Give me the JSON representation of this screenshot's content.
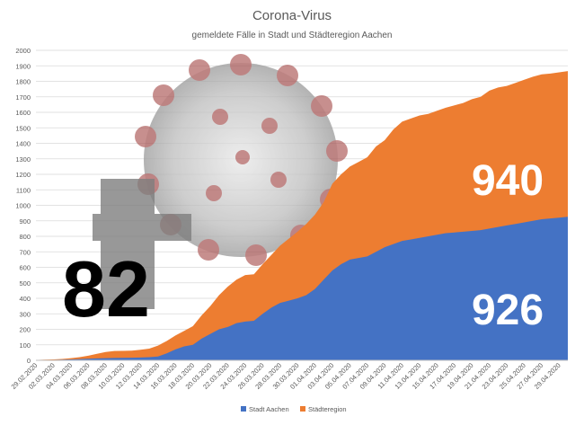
{
  "chart_data": {
    "type": "area",
    "title": "Corona-Virus",
    "subtitle": "gemeldete Fälle in Stadt und Städteregion Aachen",
    "ylim": [
      0,
      2000
    ],
    "yticks": [
      0,
      100,
      200,
      300,
      400,
      500,
      600,
      700,
      800,
      900,
      1000,
      1100,
      1200,
      1300,
      1400,
      1500,
      1600,
      1700,
      1800,
      1900,
      2000
    ],
    "stacked": true,
    "x": [
      "29.02.2020",
      "01.03.2020",
      "02.03.2020",
      "03.03.2020",
      "04.03.2020",
      "05.03.2020",
      "06.03.2020",
      "07.03.2020",
      "08.03.2020",
      "09.03.2020",
      "10.03.2020",
      "11.03.2020",
      "12.03.2020",
      "13.03.2020",
      "14.03.2020",
      "15.03.2020",
      "16.03.2020",
      "17.03.2020",
      "18.03.2020",
      "19.03.2020",
      "20.03.2020",
      "21.03.2020",
      "22.03.2020",
      "23.03.2020",
      "24.03.2020",
      "25.03.2020",
      "26.03.2020",
      "27.03.2020",
      "28.03.2020",
      "29.03.2020",
      "30.03.2020",
      "31.03.2020",
      "01.04.2020",
      "02.04.2020",
      "03.04.2020",
      "04.04.2020",
      "05.04.2020",
      "06.04.2020",
      "07.04.2020",
      "08.04.2020",
      "09.04.2020",
      "10.04.2020",
      "11.04.2020",
      "12.04.2020",
      "13.04.2020",
      "14.04.2020",
      "15.04.2020",
      "16.04.2020",
      "17.04.2020",
      "18.04.2020",
      "19.04.2020",
      "20.04.2020",
      "21.04.2020",
      "22.04.2020",
      "23.04.2020",
      "24.04.2020",
      "25.04.2020",
      "26.04.2020",
      "27.04.2020",
      "28.04.2020",
      "29.04.2020",
      "30.04.2020"
    ],
    "xtick_labels": [
      "29.02.2020",
      "02.03.2020",
      "04.03.2020",
      "06.03.2020",
      "08.03.2020",
      "10.03.2020",
      "12.03.2020",
      "14.03.2020",
      "16.03.2020",
      "18.03.2020",
      "20.03.2020",
      "22.03.2020",
      "24.03.2020",
      "26.03.2020",
      "28.03.2020",
      "30.03.2020",
      "01.04.2020",
      "03.04.2020",
      "05.04.2020",
      "07.04.2020",
      "09.04.2020",
      "11.04.2020",
      "13.04.2020",
      "15.04.2020",
      "17.04.2020",
      "19.04.2020",
      "21.04.2020",
      "23.04.2020",
      "25.04.2020",
      "27.04.2020",
      "29.04.2020"
    ],
    "series": [
      {
        "name": "Stadt Aachen",
        "color": "#4472c4",
        "values": [
          1,
          2,
          3,
          4,
          6,
          8,
          10,
          12,
          14,
          15,
          16,
          17,
          18,
          20,
          25,
          45,
          70,
          90,
          100,
          140,
          170,
          200,
          215,
          240,
          250,
          255,
          300,
          340,
          370,
          385,
          400,
          420,
          460,
          520,
          580,
          620,
          650,
          660,
          670,
          700,
          730,
          750,
          770,
          780,
          790,
          800,
          810,
          820,
          825,
          830,
          835,
          840,
          850,
          860,
          870,
          880,
          890,
          900,
          910,
          915,
          920,
          926
        ]
      },
      {
        "name": "Städteregion",
        "color": "#ed7d31",
        "values": [
          1,
          2,
          3,
          5,
          8,
          12,
          20,
          30,
          40,
          45,
          45,
          45,
          50,
          55,
          70,
          80,
          90,
          100,
          120,
          150,
          180,
          220,
          260,
          280,
          300,
          300,
          320,
          340,
          370,
          400,
          430,
          460,
          480,
          500,
          560,
          580,
          600,
          620,
          640,
          680,
          690,
          740,
          770,
          780,
          790,
          790,
          800,
          810,
          820,
          830,
          850,
          860,
          890,
          900,
          900,
          910,
          920,
          930,
          935,
          935,
          938,
          940
        ]
      }
    ],
    "annotations": [
      {
        "text": "82",
        "meaning": "deaths, next to cross symbol"
      },
      {
        "text": "940",
        "series": "Städteregion"
      },
      {
        "text": "926",
        "series": "Stadt Aachen"
      }
    ],
    "legend": "bottom-center"
  }
}
